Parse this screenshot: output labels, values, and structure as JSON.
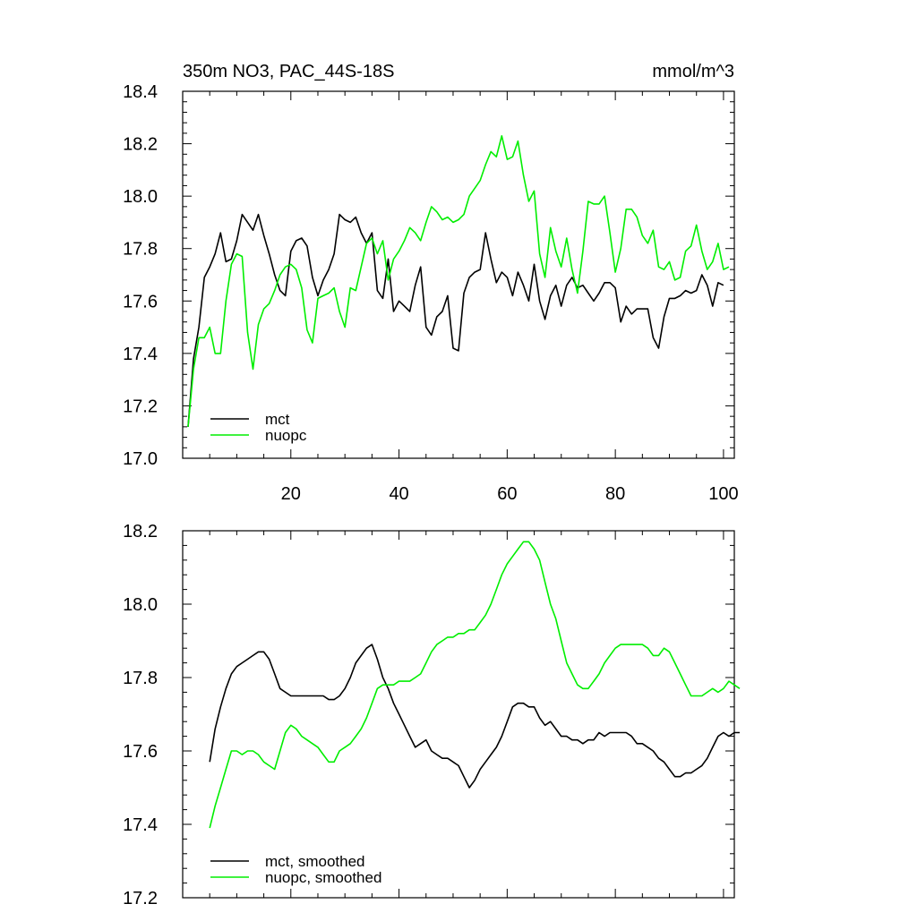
{
  "chart_data": [
    {
      "type": "line",
      "title": "350m NO3, PAC_44S-18S",
      "units": "mmol/m^3",
      "xlim": [
        0,
        102
      ],
      "ylim": [
        17.0,
        18.4
      ],
      "xticks": [
        20,
        40,
        60,
        80,
        100
      ],
      "xtick_labels": [
        "20",
        "40",
        "60",
        "80",
        "100"
      ],
      "yticks": [
        17.0,
        17.2,
        17.4,
        17.6,
        17.8,
        18.0,
        18.2,
        18.4
      ],
      "ytick_labels": [
        "17.0",
        "17.2",
        "17.4",
        "17.6",
        "17.8",
        "18.0",
        "18.2",
        "18.4"
      ],
      "legend": "bottom-left",
      "series": [
        {
          "name": "mct",
          "color": "#000000",
          "x_start": 1,
          "values": [
            17.12,
            17.38,
            17.5,
            17.69,
            17.73,
            17.78,
            17.86,
            17.75,
            17.76,
            17.83,
            17.93,
            17.9,
            17.87,
            17.93,
            17.85,
            17.78,
            17.7,
            17.64,
            17.62,
            17.79,
            17.83,
            17.84,
            17.81,
            17.69,
            17.62,
            17.68,
            17.72,
            17.78,
            17.93,
            17.91,
            17.9,
            17.92,
            17.86,
            17.82,
            17.86,
            17.64,
            17.61,
            17.76,
            17.56,
            17.6,
            17.58,
            17.56,
            17.66,
            17.73,
            17.5,
            17.47,
            17.54,
            17.56,
            17.62,
            17.42,
            17.41,
            17.63,
            17.69,
            17.71,
            17.72,
            17.86,
            17.76,
            17.67,
            17.71,
            17.69,
            17.62,
            17.71,
            17.66,
            17.6,
            17.74,
            17.6,
            17.53,
            17.62,
            17.66,
            17.58,
            17.66,
            17.69,
            17.65,
            17.66,
            17.63,
            17.6,
            17.63,
            17.67,
            17.67,
            17.65,
            17.52,
            17.58,
            17.55,
            17.57,
            17.57,
            17.57,
            17.46,
            17.42,
            17.54,
            17.61,
            17.61,
            17.62,
            17.64,
            17.63,
            17.64,
            17.7,
            17.66,
            17.58,
            17.67,
            17.66
          ]
        },
        {
          "name": "nuopc",
          "color": "#00ee00",
          "x_start": 1,
          "values": [
            17.12,
            17.34,
            17.46,
            17.46,
            17.5,
            17.4,
            17.4,
            17.6,
            17.74,
            17.78,
            17.77,
            17.48,
            17.34,
            17.51,
            17.57,
            17.59,
            17.64,
            17.7,
            17.73,
            17.74,
            17.72,
            17.65,
            17.49,
            17.44,
            17.61,
            17.62,
            17.63,
            17.65,
            17.56,
            17.5,
            17.65,
            17.64,
            17.73,
            17.82,
            17.84,
            17.78,
            17.83,
            17.68,
            17.76,
            17.79,
            17.83,
            17.88,
            17.86,
            17.83,
            17.9,
            17.96,
            17.94,
            17.91,
            17.92,
            17.9,
            17.91,
            17.93,
            18.0,
            18.03,
            18.06,
            18.12,
            18.17,
            18.15,
            18.23,
            18.14,
            18.15,
            18.21,
            18.08,
            17.98,
            18.02,
            17.78,
            17.69,
            17.88,
            17.79,
            17.73,
            17.84,
            17.72,
            17.63,
            17.79,
            17.98,
            17.97,
            17.97,
            18.0,
            17.86,
            17.71,
            17.8,
            17.95,
            17.95,
            17.92,
            17.85,
            17.82,
            17.87,
            17.73,
            17.72,
            17.75,
            17.68,
            17.69,
            17.79,
            17.81,
            17.89,
            17.79,
            17.72,
            17.75,
            17.82,
            17.72,
            17.73
          ]
        }
      ]
    },
    {
      "type": "line",
      "title": "",
      "xlim": [
        0,
        102
      ],
      "ylim": [
        17.2,
        18.2
      ],
      "xticks": [
        20,
        40,
        60,
        80,
        100
      ],
      "yticks": [
        17.2,
        17.4,
        17.6,
        17.8,
        18.0,
        18.2
      ],
      "ytick_labels": [
        "17.2",
        "17.4",
        "17.6",
        "17.8",
        "18.0",
        "18.2"
      ],
      "legend": "bottom-left",
      "series": [
        {
          "name": "mct, smoothed",
          "color": "#000000",
          "x_start": 5,
          "values": [
            17.57,
            17.66,
            17.72,
            17.77,
            17.81,
            17.83,
            17.84,
            17.85,
            17.86,
            17.87,
            17.87,
            17.85,
            17.81,
            17.77,
            17.76,
            17.75,
            17.75,
            17.75,
            17.75,
            17.75,
            17.75,
            17.75,
            17.74,
            17.74,
            17.75,
            17.77,
            17.8,
            17.84,
            17.86,
            17.88,
            17.89,
            17.85,
            17.8,
            17.77,
            17.73,
            17.7,
            17.67,
            17.64,
            17.61,
            17.62,
            17.63,
            17.6,
            17.59,
            17.58,
            17.58,
            17.57,
            17.56,
            17.53,
            17.5,
            17.52,
            17.55,
            17.57,
            17.59,
            17.61,
            17.64,
            17.68,
            17.72,
            17.73,
            17.73,
            17.72,
            17.72,
            17.69,
            17.67,
            17.68,
            17.66,
            17.64,
            17.64,
            17.63,
            17.63,
            17.62,
            17.63,
            17.63,
            17.65,
            17.64,
            17.65,
            17.65,
            17.65,
            17.65,
            17.64,
            17.62,
            17.62,
            17.61,
            17.6,
            17.58,
            17.57,
            17.55,
            17.53,
            17.53,
            17.54,
            17.54,
            17.55,
            17.56,
            17.58,
            17.61,
            17.64,
            17.65,
            17.64,
            17.65,
            17.65
          ]
        },
        {
          "name": "nuopc, smoothed",
          "color": "#00ee00",
          "x_start": 5,
          "values": [
            17.39,
            17.45,
            17.5,
            17.55,
            17.6,
            17.6,
            17.59,
            17.6,
            17.6,
            17.59,
            17.57,
            17.56,
            17.55,
            17.6,
            17.65,
            17.67,
            17.66,
            17.64,
            17.63,
            17.62,
            17.61,
            17.59,
            17.57,
            17.57,
            17.6,
            17.61,
            17.62,
            17.64,
            17.66,
            17.69,
            17.73,
            17.77,
            17.78,
            17.78,
            17.78,
            17.79,
            17.79,
            17.79,
            17.8,
            17.81,
            17.84,
            17.87,
            17.89,
            17.9,
            17.91,
            17.91,
            17.92,
            17.92,
            17.93,
            17.93,
            17.95,
            17.97,
            18.0,
            18.04,
            18.08,
            18.11,
            18.13,
            18.15,
            18.17,
            18.17,
            18.15,
            18.12,
            18.06,
            18.0,
            17.96,
            17.9,
            17.84,
            17.81,
            17.78,
            17.77,
            17.77,
            17.79,
            17.81,
            17.84,
            17.86,
            17.88,
            17.89,
            17.89,
            17.89,
            17.89,
            17.89,
            17.88,
            17.86,
            17.86,
            17.88,
            17.87,
            17.84,
            17.81,
            17.78,
            17.75,
            17.75,
            17.75,
            17.76,
            17.77,
            17.76,
            17.77,
            17.79,
            17.78,
            17.77
          ]
        }
      ]
    }
  ]
}
